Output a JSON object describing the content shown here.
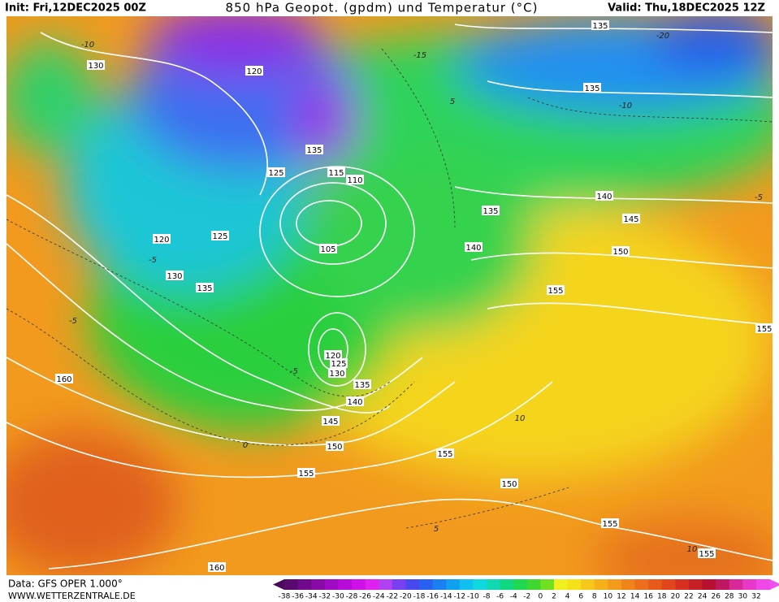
{
  "header": {
    "init": "Init: Fri,12DEC2025 00Z",
    "title": "850 hPa Geopot. (gpdm) und Temperatur (°C)",
    "valid": "Valid: Thu,18DEC2025 12Z"
  },
  "footer": {
    "source": "Data: GFS OPER 1.000°",
    "website": "WWW.WETTERZENTRALE.DE"
  },
  "colorbar": {
    "labels": [
      "-38",
      "-36",
      "-34",
      "-32",
      "-30",
      "-28",
      "-26",
      "-24",
      "-22",
      "-20",
      "-18",
      "-16",
      "-14",
      "-12",
      "-10",
      "-8",
      "-6",
      "-4",
      "-2",
      "0",
      "2",
      "4",
      "6",
      "8",
      "10",
      "12",
      "14",
      "16",
      "18",
      "20",
      "22",
      "24",
      "26",
      "28",
      "30",
      "32"
    ]
  },
  "contour_labels": [
    "130",
    "120",
    "135",
    "135",
    "135",
    "125",
    "115",
    "110",
    "105",
    "120",
    "125",
    "130",
    "135",
    "135",
    "140",
    "145",
    "140",
    "150",
    "155",
    "155",
    "160",
    "120",
    "125",
    "130",
    "135",
    "140",
    "145",
    "150",
    "155",
    "155",
    "150",
    "155",
    "155",
    "160"
  ],
  "isotherm_labels": [
    "-10",
    "-15",
    "-20",
    "-10",
    "-5",
    "-5",
    "-5",
    "5",
    "10",
    "0",
    "-5",
    "5",
    "10"
  ]
}
